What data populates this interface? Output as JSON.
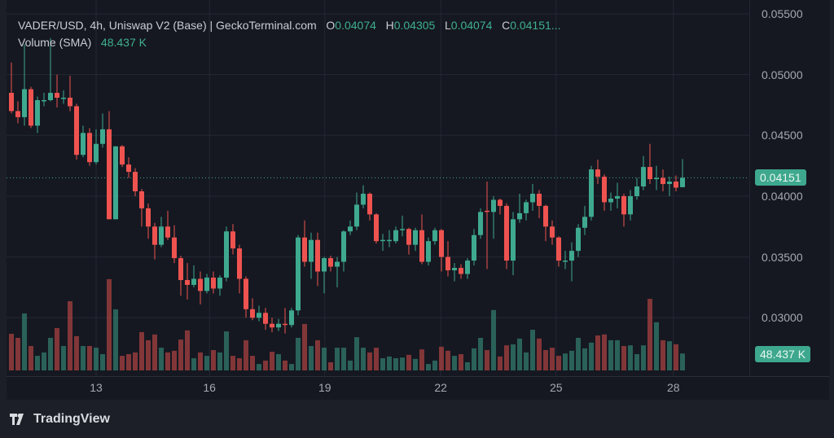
{
  "legend": {
    "symbol": "VADER/USD, 4h, Uniswap V2 (Base) | GeckoTerminal.com",
    "o_label": "O",
    "o": "0.04074",
    "h_label": "H",
    "h": "0.04305",
    "l_label": "L",
    "l": "0.04074",
    "c_label": "C",
    "c": "0.04151...",
    "volume_label": "Volume (SMA)",
    "volume_value": "48.437 K"
  },
  "price_tag": "0.04151",
  "volume_tag": "48.437 K",
  "branding": "TradingView",
  "colors": {
    "up": "#3fa98f",
    "down": "#ef5350",
    "background": "#151821",
    "grid": "#242834"
  },
  "chart_data": {
    "type": "candlestick",
    "interval": "4h",
    "price_axis": {
      "ticks": [
        "0.05500",
        "0.05000",
        "0.04500",
        "0.04000",
        "0.03500",
        "0.03000"
      ],
      "range": [
        0.0289,
        0.0555
      ]
    },
    "time_axis": {
      "ticks": [
        "13",
        "16",
        "19",
        "22",
        "25",
        "28"
      ],
      "tick_candle_index": [
        13,
        30.4,
        48.1,
        65.9,
        83.6,
        101.6
      ]
    },
    "last_price": 0.04151,
    "volume_sma_k": 48.437,
    "grid": true,
    "candles_ohlc": [
      [
        0.0485,
        0.051,
        0.0468,
        0.047
      ],
      [
        0.047,
        0.0478,
        0.046,
        0.0465
      ],
      [
        0.0465,
        0.0525,
        0.0458,
        0.0488
      ],
      [
        0.0488,
        0.049,
        0.0456,
        0.0458
      ],
      [
        0.0458,
        0.0482,
        0.0452,
        0.0479
      ],
      [
        0.0479,
        0.0485,
        0.0474,
        0.0479
      ],
      [
        0.0479,
        0.053,
        0.0478,
        0.0485
      ],
      [
        0.0485,
        0.05,
        0.0473,
        0.0481
      ],
      [
        0.0481,
        0.0487,
        0.0476,
        0.0481
      ],
      [
        0.0481,
        0.0499,
        0.047,
        0.0474
      ],
      [
        0.0474,
        0.0476,
        0.043,
        0.0434
      ],
      [
        0.0434,
        0.0458,
        0.0432,
        0.0452
      ],
      [
        0.0452,
        0.0456,
        0.0425,
        0.0428
      ],
      [
        0.0428,
        0.0455,
        0.0426,
        0.0443
      ],
      [
        0.0443,
        0.0468,
        0.044,
        0.0455
      ],
      [
        0.0455,
        0.047,
        0.0381,
        0.0381
      ],
      [
        0.0381,
        0.0441,
        0.0381,
        0.0441
      ],
      [
        0.0441,
        0.0442,
        0.0424,
        0.0426
      ],
      [
        0.0426,
        0.0432,
        0.0415,
        0.042
      ],
      [
        0.042,
        0.0423,
        0.04,
        0.0404
      ],
      [
        0.0404,
        0.0406,
        0.0375,
        0.039
      ],
      [
        0.039,
        0.0394,
        0.0365,
        0.0375
      ],
      [
        0.0375,
        0.0378,
        0.0348,
        0.036
      ],
      [
        0.036,
        0.0383,
        0.0358,
        0.0375
      ],
      [
        0.0375,
        0.0388,
        0.0364,
        0.0366
      ],
      [
        0.0366,
        0.0376,
        0.0345,
        0.0349
      ],
      [
        0.0349,
        0.0351,
        0.0318,
        0.0331
      ],
      [
        0.0331,
        0.0345,
        0.0315,
        0.0327
      ],
      [
        0.0327,
        0.0343,
        0.0325,
        0.0332
      ],
      [
        0.0332,
        0.0338,
        0.0311,
        0.0322
      ],
      [
        0.0322,
        0.0336,
        0.032,
        0.0333
      ],
      [
        0.0333,
        0.0338,
        0.032,
        0.0324
      ],
      [
        0.0324,
        0.0335,
        0.0318,
        0.0333
      ],
      [
        0.0333,
        0.0375,
        0.033,
        0.0371
      ],
      [
        0.0371,
        0.0377,
        0.0352,
        0.0357
      ],
      [
        0.0357,
        0.036,
        0.032,
        0.0332
      ],
      [
        0.0332,
        0.0334,
        0.03,
        0.0307
      ],
      [
        0.0307,
        0.0316,
        0.0298,
        0.03
      ],
      [
        0.03,
        0.031,
        0.0297,
        0.0304
      ],
      [
        0.0304,
        0.0308,
        0.029,
        0.0295
      ],
      [
        0.0295,
        0.03,
        0.0288,
        0.0292
      ],
      [
        0.0292,
        0.0299,
        0.0289,
        0.0295
      ],
      [
        0.0295,
        0.0308,
        0.0287,
        0.0294
      ],
      [
        0.0294,
        0.0308,
        0.0292,
        0.0306
      ],
      [
        0.0306,
        0.0368,
        0.0302,
        0.0366
      ],
      [
        0.0366,
        0.038,
        0.0342,
        0.0346
      ],
      [
        0.0346,
        0.037,
        0.0332,
        0.0364
      ],
      [
        0.0364,
        0.037,
        0.0326,
        0.0338
      ],
      [
        0.0338,
        0.035,
        0.032,
        0.0349
      ],
      [
        0.0349,
        0.0351,
        0.0338,
        0.0342
      ],
      [
        0.0342,
        0.035,
        0.0325,
        0.0346
      ],
      [
        0.0346,
        0.0372,
        0.0338,
        0.0371
      ],
      [
        0.0371,
        0.038,
        0.0368,
        0.0375
      ],
      [
        0.0375,
        0.0403,
        0.0372,
        0.0393
      ],
      [
        0.0393,
        0.0409,
        0.039,
        0.0402
      ],
      [
        0.0402,
        0.0403,
        0.038,
        0.0385
      ],
      [
        0.0385,
        0.0386,
        0.0361,
        0.0363
      ],
      [
        0.0363,
        0.0369,
        0.0355,
        0.0364
      ],
      [
        0.0364,
        0.0372,
        0.0358,
        0.0364
      ],
      [
        0.0363,
        0.0375,
        0.0361,
        0.0372
      ],
      [
        0.0372,
        0.0384,
        0.0367,
        0.0373
      ],
      [
        0.0373,
        0.0374,
        0.0352,
        0.036
      ],
      [
        0.036,
        0.0374,
        0.0355,
        0.0372
      ],
      [
        0.0372,
        0.0385,
        0.0344,
        0.0346
      ],
      [
        0.0346,
        0.0366,
        0.0343,
        0.0363
      ],
      [
        0.0363,
        0.0374,
        0.036,
        0.0372
      ],
      [
        0.0372,
        0.0373,
        0.0338,
        0.035
      ],
      [
        0.035,
        0.0363,
        0.0334,
        0.0339
      ],
      [
        0.0339,
        0.0345,
        0.033,
        0.0341
      ],
      [
        0.0341,
        0.0344,
        0.0332,
        0.0336
      ],
      [
        0.0336,
        0.0349,
        0.0332,
        0.0347
      ],
      [
        0.0347,
        0.0373,
        0.0343,
        0.0368
      ],
      [
        0.0368,
        0.039,
        0.0365,
        0.0387
      ],
      [
        0.0388,
        0.0412,
        0.034,
        0.0387
      ],
      [
        0.0387,
        0.04,
        0.0365,
        0.0397
      ],
      [
        0.0397,
        0.0398,
        0.0385,
        0.0392
      ],
      [
        0.0392,
        0.0394,
        0.034,
        0.0347
      ],
      [
        0.0347,
        0.0387,
        0.0335,
        0.0381
      ],
      [
        0.0381,
        0.0402,
        0.0378,
        0.0386
      ],
      [
        0.0386,
        0.0397,
        0.038,
        0.0395
      ],
      [
        0.0395,
        0.041,
        0.0388,
        0.0402
      ],
      [
        0.0402,
        0.0405,
        0.0382,
        0.0392
      ],
      [
        0.0392,
        0.0393,
        0.0363,
        0.0375
      ],
      [
        0.0375,
        0.038,
        0.036,
        0.0366
      ],
      [
        0.0366,
        0.0367,
        0.0342,
        0.0347
      ],
      [
        0.0347,
        0.0355,
        0.034,
        0.0347
      ],
      [
        0.0347,
        0.0362,
        0.033,
        0.0355
      ],
      [
        0.0355,
        0.0377,
        0.035,
        0.0374
      ],
      [
        0.0374,
        0.0392,
        0.0368,
        0.0383
      ],
      [
        0.0383,
        0.0425,
        0.038,
        0.0422
      ],
      [
        0.0422,
        0.043,
        0.041,
        0.0416
      ],
      [
        0.0416,
        0.0418,
        0.0388,
        0.0395
      ],
      [
        0.0395,
        0.0403,
        0.0388,
        0.0398
      ],
      [
        0.0398,
        0.0411,
        0.039,
        0.04
      ],
      [
        0.04,
        0.0402,
        0.0375,
        0.0385
      ],
      [
        0.0385,
        0.0405,
        0.038,
        0.04
      ],
      [
        0.04,
        0.0415,
        0.0397,
        0.0408
      ],
      [
        0.0408,
        0.0433,
        0.0405,
        0.0424
      ],
      [
        0.0424,
        0.0443,
        0.041,
        0.0414
      ],
      [
        0.0414,
        0.0425,
        0.0405,
        0.0415
      ],
      [
        0.0415,
        0.0422,
        0.0404,
        0.041
      ],
      [
        0.041,
        0.0416,
        0.04,
        0.0412
      ],
      [
        0.0412,
        0.0417,
        0.0404,
        0.0407
      ],
      [
        0.04074,
        0.04305,
        0.04074,
        0.04151
      ]
    ],
    "volumes_k": [
      108,
      96,
      168,
      72,
      43,
      53,
      96,
      125,
      72,
      204,
      101,
      72,
      72,
      67,
      48,
      269,
      180,
      43,
      48,
      53,
      113,
      89,
      106,
      67,
      53,
      58,
      91,
      118,
      36,
      53,
      43,
      60,
      53,
      115,
      43,
      36,
      89,
      43,
      19,
      29,
      55,
      48,
      29,
      19,
      96,
      137,
      72,
      89,
      67,
      24,
      67,
      67,
      29,
      98,
      67,
      53,
      67,
      36,
      41,
      36,
      38,
      46,
      34,
      62,
      19,
      29,
      70,
      58,
      43,
      48,
      24,
      65,
      96,
      60,
      178,
      41,
      74,
      77,
      94,
      53,
      120,
      94,
      60,
      67,
      43,
      50,
      58,
      96,
      65,
      82,
      103,
      106,
      89,
      89,
      72,
      74,
      48,
      74,
      211,
      142,
      89,
      86,
      77,
      50
    ]
  }
}
